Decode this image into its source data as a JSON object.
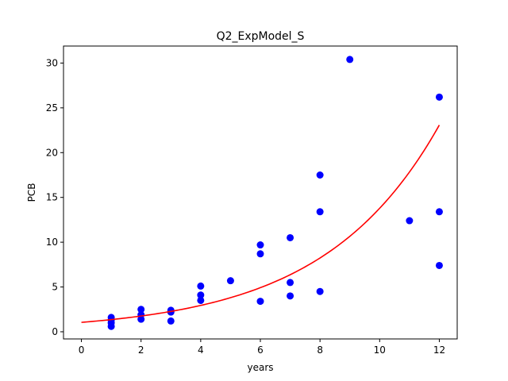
{
  "chart_data": {
    "type": "scatter",
    "title": "Q2_ExpModel_S",
    "xlabel": "years",
    "ylabel": "PCB",
    "xlim": [
      -0.6,
      12.6
    ],
    "ylim": [
      -0.8,
      31.9
    ],
    "xticks": [
      0,
      2,
      4,
      6,
      8,
      10,
      12
    ],
    "yticks": [
      0,
      5,
      10,
      15,
      20,
      25,
      30
    ],
    "grid": false,
    "legend": "none",
    "series": [
      {
        "type": "scatter",
        "color": "#0000ff",
        "points": [
          [
            1,
            0.6
          ],
          [
            1,
            1.0
          ],
          [
            1,
            1.3
          ],
          [
            1,
            1.6
          ],
          [
            2,
            1.4
          ],
          [
            2,
            1.9
          ],
          [
            2,
            2.5
          ],
          [
            3,
            1.2
          ],
          [
            3,
            2.2
          ],
          [
            3,
            2.4
          ],
          [
            4,
            3.5
          ],
          [
            4,
            4.1
          ],
          [
            4,
            5.1
          ],
          [
            5,
            5.7
          ],
          [
            6,
            3.4
          ],
          [
            6,
            8.7
          ],
          [
            6,
            9.7
          ],
          [
            7,
            4.0
          ],
          [
            7,
            5.5
          ],
          [
            7,
            10.5
          ],
          [
            8,
            4.5
          ],
          [
            8,
            13.4
          ],
          [
            8,
            17.5
          ],
          [
            9,
            30.4
          ],
          [
            11,
            12.4
          ],
          [
            12,
            7.4
          ],
          [
            12,
            13.4
          ],
          [
            12,
            26.2
          ]
        ]
      },
      {
        "type": "line",
        "color": "#ff0000",
        "model": "exponential",
        "x_range": [
          0,
          12
        ],
        "a": 1.05,
        "b": 0.2575
      }
    ]
  }
}
